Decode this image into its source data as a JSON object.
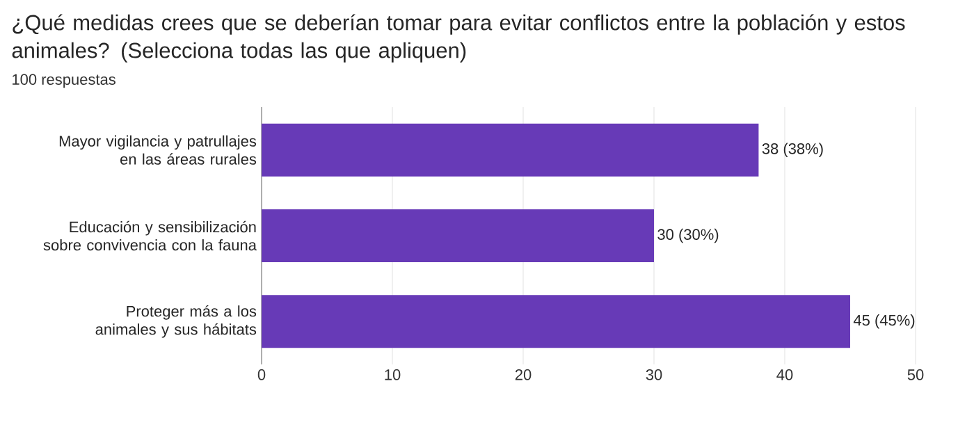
{
  "chart_data": {
    "type": "bar",
    "orientation": "horizontal",
    "title": "¿Qué medidas crees que se deberían tomar para evitar conflictos entre la población y estos animales? (Selecciona todas las que apliquen)",
    "subtitle": "100 respuestas",
    "categories": [
      "Mayor vigilancia y patrullajes en las áreas rurales",
      "Educación y sensibilización sobre convivencia con la fauna",
      "Proteger más a los animales y sus hábitats"
    ],
    "values": [
      38,
      30,
      45
    ],
    "value_labels": [
      "38 (38%)",
      "30 (30%)",
      "45 (45%)"
    ],
    "color": "#673ab7",
    "xlim": [
      0,
      50
    ],
    "xticks": [
      0,
      10,
      20,
      30,
      40,
      50
    ],
    "grid": "x"
  }
}
